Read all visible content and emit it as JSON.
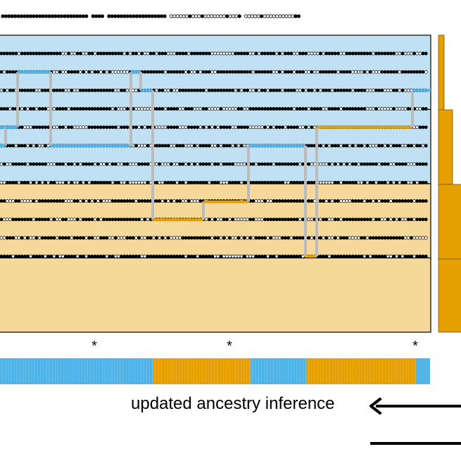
{
  "colors": {
    "blue": "#4DB3E8",
    "blue_bg": "#BFE1F3",
    "orange": "#E69F00",
    "orange_bg": "#F6D89B",
    "path_grey": "#BBBBBB",
    "dot_black": "#000000",
    "dot_white": "#FFFFFF",
    "frame": "#000000"
  },
  "header_pattern": "●●●●●●●●●●●●●●●●●●●●●●●●●●●● ●●●● ●●●●●●●●●●●●●●●●●●● ○○○○○○●○○○●○○○○○○○●○○○● ○○○○○●○○○○○○○○○○●●",
  "haplotype_groups": [
    {
      "ancestry": "blue",
      "rows": 3
    },
    {
      "ancestry": "blue",
      "rows": 3
    },
    {
      "ancestry": "orange",
      "rows": 3
    },
    {
      "ancestry": "orange",
      "rows": 3
    }
  ],
  "significant_site_markers": [
    "*",
    "*",
    "*"
  ],
  "inferred_ancestry_track": [
    {
      "ancestry": "blue",
      "from_site": 0,
      "to_site": 52
    },
    {
      "ancestry": "orange",
      "from_site": 52,
      "to_site": 85
    },
    {
      "ancestry": "blue",
      "from_site": 85,
      "to_site": 104
    },
    {
      "ancestry": "orange",
      "from_site": 104,
      "to_site": 141
    },
    {
      "ancestry": "blue",
      "from_site": 141,
      "to_site": 146
    }
  ],
  "labels": {
    "update_caption": "updated ancestry inference"
  }
}
